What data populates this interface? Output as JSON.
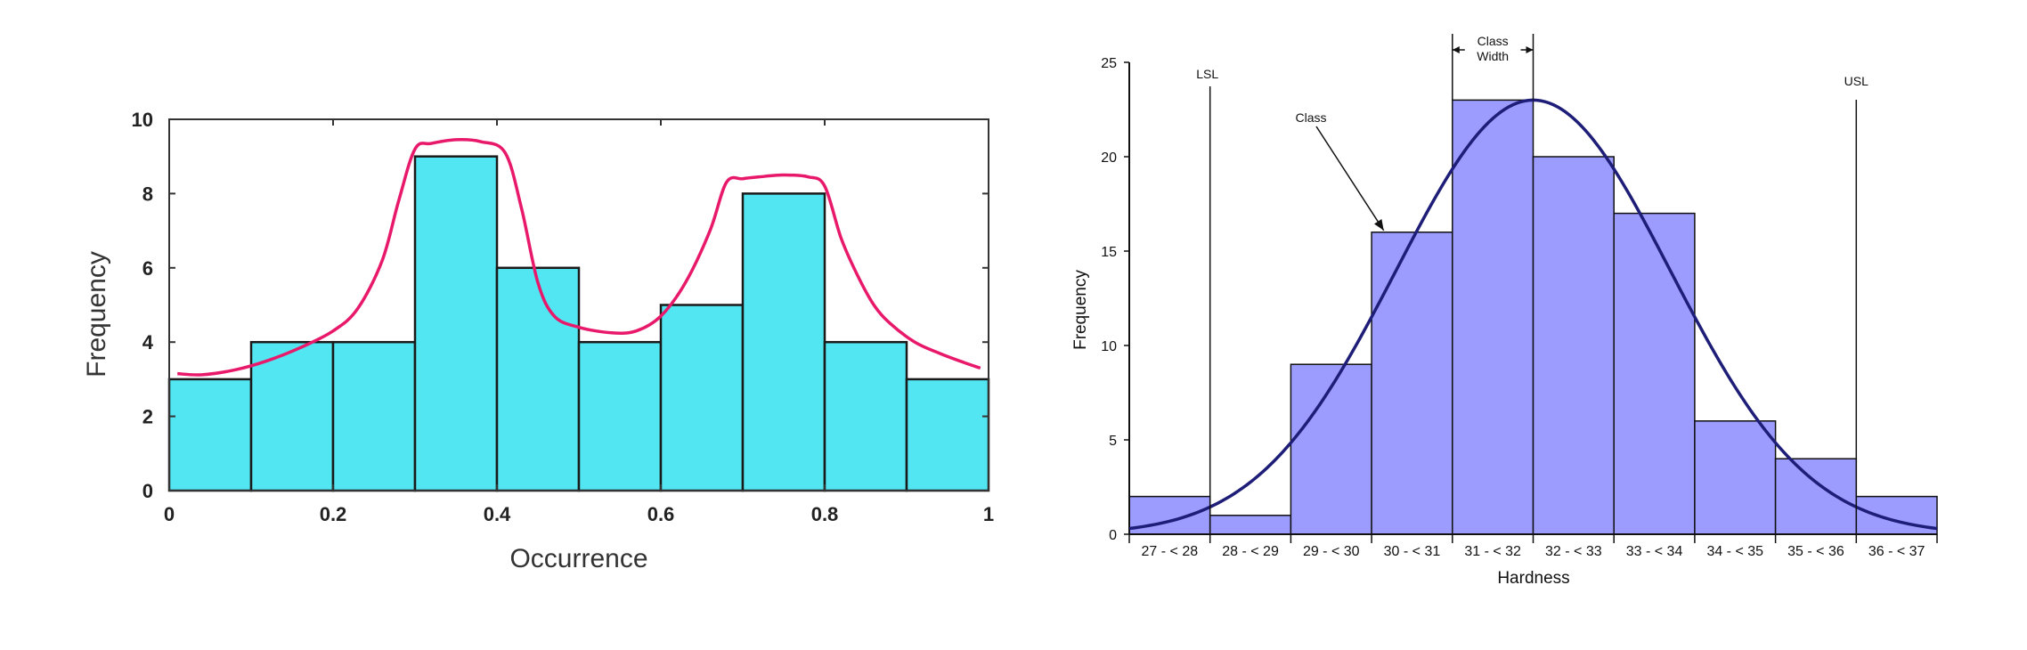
{
  "chart_data": [
    {
      "type": "bar",
      "bins": [
        [
          0,
          0.1
        ],
        [
          0.1,
          0.2
        ],
        [
          0.2,
          0.3
        ],
        [
          0.3,
          0.4
        ],
        [
          0.4,
          0.5
        ],
        [
          0.5,
          0.6
        ],
        [
          0.6,
          0.7
        ],
        [
          0.7,
          0.8
        ],
        [
          0.8,
          0.9
        ],
        [
          0.9,
          1.0
        ]
      ],
      "values": [
        3,
        4,
        4,
        9,
        6,
        4,
        5,
        8,
        4,
        3
      ],
      "xticks": [
        "0",
        "0.2",
        "0.4",
        "0.6",
        "0.8",
        "1"
      ],
      "xtick_values": [
        0,
        0.2,
        0.4,
        0.6,
        0.8,
        1
      ],
      "yticks": [
        "0",
        "2",
        "4",
        "6",
        "8",
        "10"
      ],
      "ytick_values": [
        0,
        2,
        4,
        6,
        8,
        10
      ],
      "xlabel": "Occurrence",
      "ylabel": "Frequency",
      "xlim": [
        0,
        1
      ],
      "ylim": [
        0,
        10
      ],
      "grid": false,
      "bar_color": "#52e6f2",
      "curve_color": "#e8196a",
      "curve": {
        "x": [
          0.01,
          0.04,
          0.08,
          0.12,
          0.16,
          0.2,
          0.23,
          0.26,
          0.28,
          0.3,
          0.32,
          0.35,
          0.38,
          0.41,
          0.43,
          0.45,
          0.47,
          0.5,
          0.54,
          0.57,
          0.6,
          0.63,
          0.66,
          0.68,
          0.7,
          0.72,
          0.75,
          0.78,
          0.8,
          0.82,
          0.84,
          0.86,
          0.88,
          0.91,
          0.94,
          0.97,
          0.99
        ],
        "y": [
          3.15,
          3.12,
          3.25,
          3.5,
          3.85,
          4.3,
          4.9,
          6.2,
          7.8,
          9.2,
          9.35,
          9.45,
          9.4,
          9.1,
          7.6,
          5.6,
          4.7,
          4.4,
          4.25,
          4.3,
          4.7,
          5.6,
          7.0,
          8.3,
          8.4,
          8.45,
          8.5,
          8.45,
          8.2,
          6.8,
          5.8,
          5.0,
          4.5,
          4.0,
          3.7,
          3.45,
          3.3
        ]
      }
    },
    {
      "type": "bar",
      "categories": [
        "27 - < 28",
        "28 - < 29",
        "29 - < 30",
        "30 - < 31",
        "31 - < 32",
        "32 - < 33",
        "33 - < 34",
        "34 - < 35",
        "35 - < 36",
        "36 - < 37"
      ],
      "values": [
        2,
        1,
        9,
        16,
        23,
        20,
        17,
        6,
        4,
        2
      ],
      "yticks": [
        "0",
        "5",
        "10",
        "15",
        "20",
        "25"
      ],
      "ytick_values": [
        0,
        5,
        10,
        15,
        20,
        25
      ],
      "xlabel": "Hardness",
      "ylabel": "Frequency",
      "ylim": [
        0,
        25
      ],
      "xlim": [
        27,
        37
      ],
      "grid": false,
      "bar_color": "#9c9cff",
      "curve_color": "#1e1e78",
      "normal_curve": {
        "mean": 32,
        "sd": 1.7,
        "peak": 23
      },
      "annotations": {
        "lsl": {
          "label": "LSL",
          "x": 28
        },
        "usl": {
          "label": "USL",
          "x": 36
        },
        "class": {
          "label": "Class"
        },
        "class_width": {
          "label_line1": "Class",
          "label_line2": "Width",
          "x0": 31,
          "x1": 32
        }
      }
    }
  ]
}
